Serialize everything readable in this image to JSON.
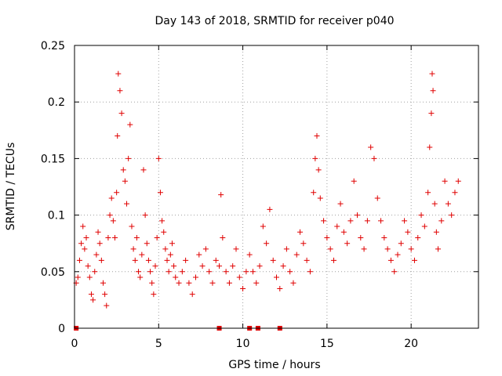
{
  "chart_data": {
    "type": "scatter",
    "title": "Day 143 of 2018, SRMTID for receiver p040",
    "xlabel": "GPS time / hours",
    "ylabel": "SRMTID / TECUs",
    "xlim": [
      0,
      24
    ],
    "ylim": [
      0,
      0.25
    ],
    "xticks": [
      0,
      5,
      10,
      15,
      20
    ],
    "xtick_labels": [
      "0",
      "5",
      "10",
      "15",
      "20"
    ],
    "yticks": [
      0,
      0.05,
      0.1,
      0.15,
      0.2,
      0.25
    ],
    "ytick_labels": [
      "0",
      "0.05",
      "0.1",
      "0.15",
      "0.2",
      "0.25"
    ],
    "grid": true,
    "marker": "plus",
    "color": "#e00000",
    "zero_markers_x": [
      0.1,
      8.6,
      10.4,
      10.9,
      12.2
    ],
    "series": [
      {
        "name": "SRMTID",
        "points": [
          [
            0.1,
            0.04
          ],
          [
            0.2,
            0.045
          ],
          [
            0.3,
            0.06
          ],
          [
            0.4,
            0.075
          ],
          [
            0.5,
            0.09
          ],
          [
            0.6,
            0.07
          ],
          [
            0.7,
            0.08
          ],
          [
            0.8,
            0.055
          ],
          [
            0.9,
            0.045
          ],
          [
            1.0,
            0.03
          ],
          [
            1.1,
            0.025
          ],
          [
            1.2,
            0.05
          ],
          [
            1.3,
            0.065
          ],
          [
            1.4,
            0.085
          ],
          [
            1.5,
            0.075
          ],
          [
            1.6,
            0.06
          ],
          [
            1.7,
            0.04
          ],
          [
            1.8,
            0.03
          ],
          [
            1.9,
            0.02
          ],
          [
            2.0,
            0.08
          ],
          [
            2.1,
            0.1
          ],
          [
            2.2,
            0.115
          ],
          [
            2.3,
            0.095
          ],
          [
            2.4,
            0.08
          ],
          [
            2.5,
            0.12
          ],
          [
            2.55,
            0.17
          ],
          [
            2.6,
            0.225
          ],
          [
            2.7,
            0.21
          ],
          [
            2.8,
            0.19
          ],
          [
            2.9,
            0.14
          ],
          [
            3.0,
            0.13
          ],
          [
            3.1,
            0.11
          ],
          [
            3.2,
            0.15
          ],
          [
            3.3,
            0.18
          ],
          [
            3.4,
            0.09
          ],
          [
            3.5,
            0.07
          ],
          [
            3.6,
            0.06
          ],
          [
            3.7,
            0.08
          ],
          [
            3.8,
            0.05
          ],
          [
            3.9,
            0.045
          ],
          [
            4.0,
            0.065
          ],
          [
            4.1,
            0.14
          ],
          [
            4.2,
            0.1
          ],
          [
            4.3,
            0.075
          ],
          [
            4.4,
            0.06
          ],
          [
            4.5,
            0.05
          ],
          [
            4.6,
            0.04
          ],
          [
            4.7,
            0.03
          ],
          [
            4.8,
            0.055
          ],
          [
            4.9,
            0.08
          ],
          [
            5.0,
            0.15
          ],
          [
            5.1,
            0.12
          ],
          [
            5.2,
            0.095
          ],
          [
            5.3,
            0.085
          ],
          [
            5.4,
            0.07
          ],
          [
            5.5,
            0.06
          ],
          [
            5.6,
            0.05
          ],
          [
            5.7,
            0.065
          ],
          [
            5.8,
            0.075
          ],
          [
            5.9,
            0.055
          ],
          [
            6.0,
            0.045
          ],
          [
            6.2,
            0.04
          ],
          [
            6.4,
            0.05
          ],
          [
            6.6,
            0.06
          ],
          [
            6.8,
            0.04
          ],
          [
            7.0,
            0.03
          ],
          [
            7.2,
            0.045
          ],
          [
            7.4,
            0.065
          ],
          [
            7.6,
            0.055
          ],
          [
            7.8,
            0.07
          ],
          [
            8.0,
            0.05
          ],
          [
            8.2,
            0.04
          ],
          [
            8.4,
            0.06
          ],
          [
            8.6,
            0.055
          ],
          [
            8.7,
            0.118
          ],
          [
            8.8,
            0.08
          ],
          [
            9.0,
            0.05
          ],
          [
            9.2,
            0.04
          ],
          [
            9.4,
            0.055
          ],
          [
            9.6,
            0.07
          ],
          [
            9.8,
            0.045
          ],
          [
            10.0,
            0.035
          ],
          [
            10.2,
            0.05
          ],
          [
            10.4,
            0.065
          ],
          [
            10.6,
            0.05
          ],
          [
            10.8,
            0.04
          ],
          [
            11.0,
            0.055
          ],
          [
            11.2,
            0.09
          ],
          [
            11.4,
            0.075
          ],
          [
            11.6,
            0.105
          ],
          [
            11.8,
            0.06
          ],
          [
            12.0,
            0.045
          ],
          [
            12.2,
            0.035
          ],
          [
            12.4,
            0.055
          ],
          [
            12.6,
            0.07
          ],
          [
            12.8,
            0.05
          ],
          [
            13.0,
            0.04
          ],
          [
            13.2,
            0.065
          ],
          [
            13.4,
            0.085
          ],
          [
            13.6,
            0.075
          ],
          [
            13.8,
            0.06
          ],
          [
            14.0,
            0.05
          ],
          [
            14.2,
            0.12
          ],
          [
            14.3,
            0.15
          ],
          [
            14.4,
            0.17
          ],
          [
            14.5,
            0.14
          ],
          [
            14.6,
            0.115
          ],
          [
            14.8,
            0.095
          ],
          [
            15.0,
            0.08
          ],
          [
            15.2,
            0.07
          ],
          [
            15.4,
            0.06
          ],
          [
            15.6,
            0.09
          ],
          [
            15.8,
            0.11
          ],
          [
            16.0,
            0.085
          ],
          [
            16.2,
            0.075
          ],
          [
            16.4,
            0.095
          ],
          [
            16.6,
            0.13
          ],
          [
            16.8,
            0.1
          ],
          [
            17.0,
            0.08
          ],
          [
            17.2,
            0.07
          ],
          [
            17.4,
            0.095
          ],
          [
            17.6,
            0.16
          ],
          [
            17.8,
            0.15
          ],
          [
            18.0,
            0.115
          ],
          [
            18.2,
            0.095
          ],
          [
            18.4,
            0.08
          ],
          [
            18.6,
            0.07
          ],
          [
            18.8,
            0.06
          ],
          [
            19.0,
            0.05
          ],
          [
            19.2,
            0.065
          ],
          [
            19.4,
            0.075
          ],
          [
            19.6,
            0.095
          ],
          [
            19.8,
            0.085
          ],
          [
            20.0,
            0.07
          ],
          [
            20.2,
            0.06
          ],
          [
            20.4,
            0.08
          ],
          [
            20.6,
            0.1
          ],
          [
            20.8,
            0.09
          ],
          [
            21.0,
            0.12
          ],
          [
            21.1,
            0.16
          ],
          [
            21.2,
            0.19
          ],
          [
            21.25,
            0.225
          ],
          [
            21.3,
            0.21
          ],
          [
            21.4,
            0.11
          ],
          [
            21.5,
            0.085
          ],
          [
            21.6,
            0.07
          ],
          [
            21.8,
            0.095
          ],
          [
            22.0,
            0.13
          ],
          [
            22.2,
            0.11
          ],
          [
            22.4,
            0.1
          ],
          [
            22.6,
            0.12
          ],
          [
            22.8,
            0.13
          ]
        ]
      }
    ]
  }
}
